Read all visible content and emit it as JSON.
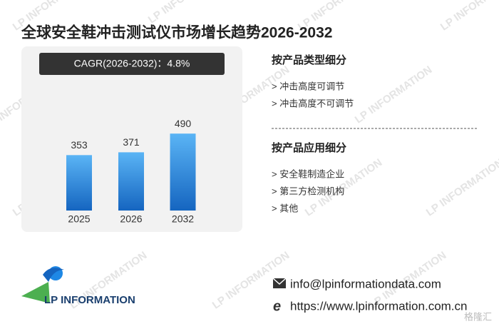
{
  "chart_data": {
    "type": "bar",
    "title": "全球安全鞋冲击测试仪市场增长趋势2026-2032",
    "annotation": "CAGR(2026-2032)：4.8%",
    "categories": [
      "2025",
      "2026",
      "2032"
    ],
    "values": [
      353,
      371,
      490
    ],
    "color": "#1f78d1"
  },
  "segments": [
    {
      "heading": "按产品类型细分",
      "items": [
        "> 冲击高度可调节",
        "> 冲击高度不可调节"
      ]
    },
    {
      "heading": "按产品应用细分",
      "items": [
        "> 安全鞋制造企业",
        "> 第三方检测机构",
        "> 其他"
      ]
    }
  ],
  "logo": "LP INFORMATION",
  "watermark": "LP INFORMATION",
  "contact": {
    "email": "info@lpinformationdata.com",
    "website": "https://www.lpinformation.com.cn"
  },
  "source_logo": "格隆汇"
}
